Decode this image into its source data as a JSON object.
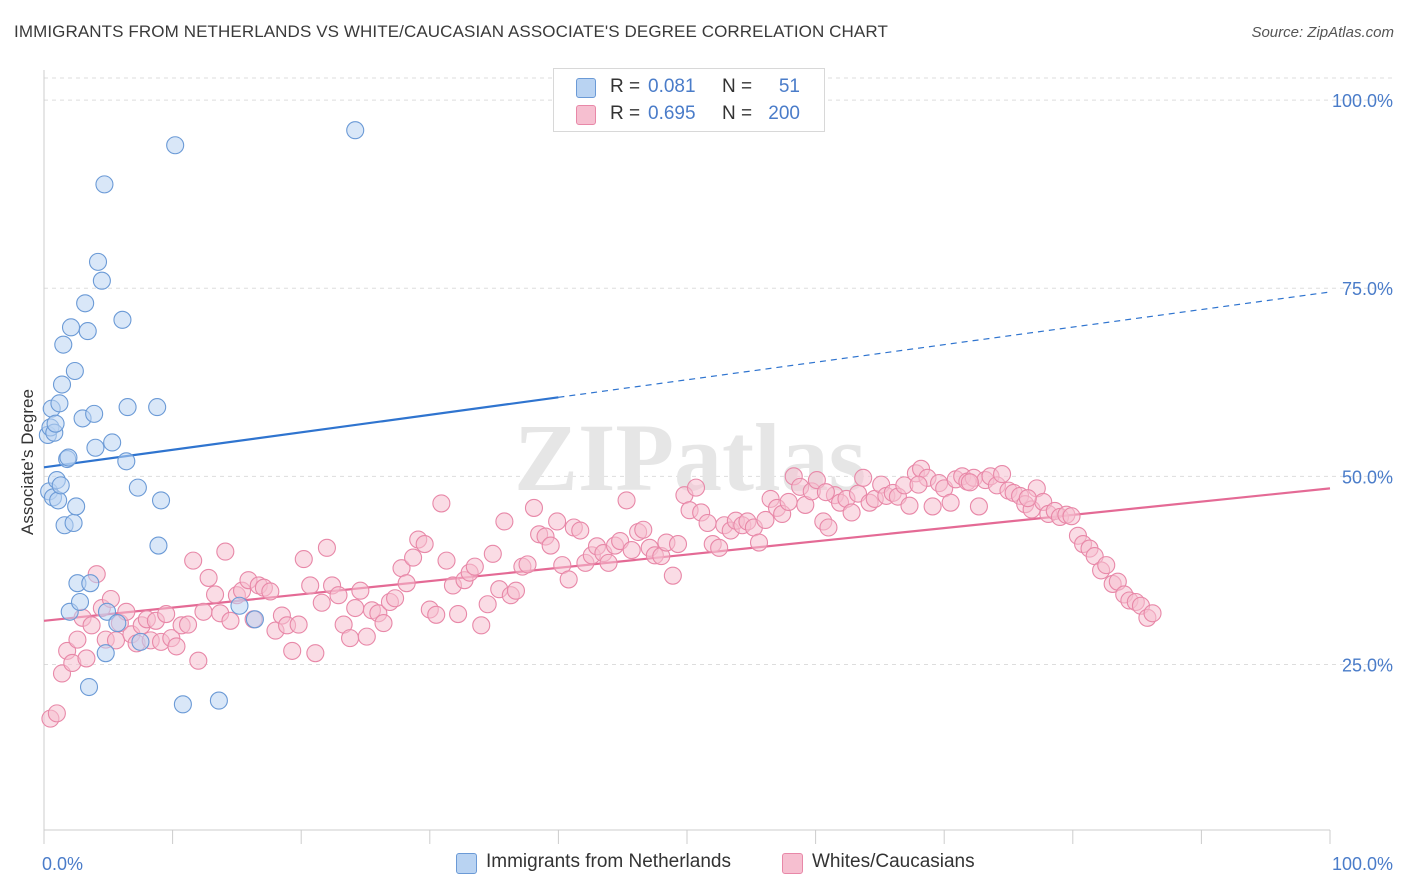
{
  "title": "IMMIGRANTS FROM NETHERLANDS VS WHITE/CAUCASIAN ASSOCIATE'S DEGREE CORRELATION CHART",
  "source": "Source: ZipAtlas.com",
  "watermark": "ZIPatlas",
  "legend": {
    "rows": [
      {
        "r_label": "R =",
        "r_value": "0.081",
        "n_label": "N =",
        "n_value": "51"
      },
      {
        "r_label": "R =",
        "r_value": "0.695",
        "n_label": "N =",
        "n_value": "200"
      }
    ]
  },
  "bottom_legend": [
    "Immigrants from Netherlands",
    "Whites/Caucasians"
  ],
  "colors": {
    "blue_fill": "#b9d3f2",
    "blue_stroke": "#6b9ad6",
    "blue_line": "#2f74cf",
    "pink_fill": "#f6bfd0",
    "pink_stroke": "#e888a8",
    "pink_line": "#e46a95",
    "tick_text": "#4a7cc9",
    "grid": "#dddddd"
  },
  "chart_data": {
    "type": "scatter",
    "title": "IMMIGRANTS FROM NETHERLANDS VS WHITE/CAUCASIAN ASSOCIATE'S DEGREE CORRELATION CHART",
    "xlabel": "",
    "ylabel": "Associate's Degree",
    "xlim": [
      0,
      100
    ],
    "ylim": [
      3,
      104
    ],
    "x_tick_labels": [
      "0.0%",
      "100.0%"
    ],
    "y_ticks": [
      25,
      50,
      75,
      100
    ],
    "y_tick_labels": [
      "25.0%",
      "50.0%",
      "75.0%",
      "100.0%"
    ],
    "grid": true,
    "legend_position": "top-center",
    "series": [
      {
        "name": "Immigrants from Netherlands",
        "color": "#6b9ad6",
        "trend": {
          "x0": 0,
          "y0": 51.2,
          "x1": 40,
          "y1": 60.5,
          "x_dashed_end": 100,
          "y_dashed_end": 74.5
        },
        "points": [
          [
            0.3,
            55.5
          ],
          [
            0.5,
            56.5
          ],
          [
            0.6,
            59
          ],
          [
            0.8,
            55.8
          ],
          [
            0.9,
            57
          ],
          [
            0.4,
            48
          ],
          [
            0.7,
            47.2
          ],
          [
            1.0,
            49.5
          ],
          [
            1.1,
            46.8
          ],
          [
            1.2,
            59.7
          ],
          [
            1.3,
            48.8
          ],
          [
            1.4,
            62.2
          ],
          [
            1.5,
            67.5
          ],
          [
            1.6,
            43.5
          ],
          [
            1.8,
            52.3
          ],
          [
            1.9,
            52.5
          ],
          [
            2.0,
            32
          ],
          [
            2.1,
            69.8
          ],
          [
            2.3,
            43.8
          ],
          [
            2.4,
            64
          ],
          [
            2.5,
            46
          ],
          [
            2.6,
            35.8
          ],
          [
            2.8,
            33.3
          ],
          [
            3.0,
            57.7
          ],
          [
            3.2,
            73
          ],
          [
            3.4,
            69.3
          ],
          [
            3.5,
            22
          ],
          [
            3.6,
            35.8
          ],
          [
            3.9,
            58.3
          ],
          [
            4.0,
            53.8
          ],
          [
            4.2,
            78.5
          ],
          [
            4.5,
            76
          ],
          [
            4.7,
            88.8
          ],
          [
            4.8,
            26.5
          ],
          [
            4.9,
            32
          ],
          [
            5.3,
            54.5
          ],
          [
            5.7,
            30.5
          ],
          [
            6.1,
            70.8
          ],
          [
            6.4,
            52
          ],
          [
            6.5,
            59.2
          ],
          [
            7.3,
            48.5
          ],
          [
            7.5,
            28
          ],
          [
            8.8,
            59.2
          ],
          [
            8.9,
            40.8
          ],
          [
            9.1,
            46.8
          ],
          [
            10.2,
            94
          ],
          [
            10.8,
            19.7
          ],
          [
            13.6,
            20.2
          ],
          [
            15.2,
            32.8
          ],
          [
            16.4,
            31
          ],
          [
            24.2,
            96
          ]
        ]
      },
      {
        "name": "Whites/Caucasians",
        "color": "#e888a8",
        "trend": {
          "x0": 0,
          "y0": 30.8,
          "x1": 100,
          "y1": 48.4
        },
        "points": [
          [
            0.5,
            17.8
          ],
          [
            1.0,
            18.5
          ],
          [
            1.4,
            23.8
          ],
          [
            1.8,
            26.8
          ],
          [
            2.2,
            25.2
          ],
          [
            2.6,
            28.3
          ],
          [
            3.0,
            31.2
          ],
          [
            3.3,
            25.8
          ],
          [
            3.7,
            30.2
          ],
          [
            4.1,
            37
          ],
          [
            4.5,
            32.5
          ],
          [
            4.8,
            28.3
          ],
          [
            5.2,
            33.7
          ],
          [
            5.6,
            28.2
          ],
          [
            5.9,
            30.5
          ],
          [
            6.4,
            32
          ],
          [
            6.8,
            29
          ],
          [
            7.2,
            27.8
          ],
          [
            7.6,
            30.2
          ],
          [
            8.0,
            31
          ],
          [
            8.3,
            28.2
          ],
          [
            8.7,
            30.8
          ],
          [
            9.1,
            28
          ],
          [
            9.5,
            31.7
          ],
          [
            9.9,
            28.5
          ],
          [
            10.3,
            27.4
          ],
          [
            10.7,
            30.2
          ],
          [
            11.2,
            30.3
          ],
          [
            11.6,
            38.8
          ],
          [
            12.0,
            25.5
          ],
          [
            12.4,
            32
          ],
          [
            12.8,
            36.5
          ],
          [
            13.3,
            34.3
          ],
          [
            13.7,
            31.8
          ],
          [
            14.1,
            40
          ],
          [
            14.5,
            30.8
          ],
          [
            15.0,
            34.2
          ],
          [
            15.4,
            34.8
          ],
          [
            15.9,
            36.2
          ],
          [
            16.3,
            31
          ],
          [
            16.7,
            35.5
          ],
          [
            17.1,
            35.2
          ],
          [
            17.6,
            34.7
          ],
          [
            18.0,
            29.5
          ],
          [
            18.5,
            31.5
          ],
          [
            18.9,
            30.2
          ],
          [
            19.3,
            26.8
          ],
          [
            19.8,
            30.3
          ],
          [
            20.2,
            39
          ],
          [
            20.7,
            35.5
          ],
          [
            21.1,
            26.5
          ],
          [
            21.6,
            33.2
          ],
          [
            22.0,
            40.5
          ],
          [
            22.4,
            35.5
          ],
          [
            22.9,
            34.2
          ],
          [
            23.3,
            30.3
          ],
          [
            23.8,
            28.5
          ],
          [
            24.2,
            32.5
          ],
          [
            24.6,
            34.8
          ],
          [
            25.1,
            28.7
          ],
          [
            25.5,
            32.2
          ],
          [
            26.0,
            31.8
          ],
          [
            26.4,
            30.5
          ],
          [
            26.9,
            33.3
          ],
          [
            27.3,
            33.8
          ],
          [
            27.8,
            37.8
          ],
          [
            28.2,
            35.8
          ],
          [
            28.7,
            39.2
          ],
          [
            29.1,
            41.6
          ],
          [
            29.6,
            41
          ],
          [
            30.0,
            32.3
          ],
          [
            30.5,
            31.6
          ],
          [
            30.9,
            46.4
          ],
          [
            31.3,
            38.8
          ],
          [
            31.8,
            35.5
          ],
          [
            32.2,
            31.7
          ],
          [
            32.7,
            36.2
          ],
          [
            33.1,
            37.2
          ],
          [
            33.5,
            38
          ],
          [
            34.0,
            30.2
          ],
          [
            34.5,
            33
          ],
          [
            34.9,
            39.7
          ],
          [
            35.4,
            35
          ],
          [
            35.8,
            44
          ],
          [
            36.3,
            34.2
          ],
          [
            36.7,
            34.8
          ],
          [
            37.2,
            38
          ],
          [
            37.6,
            38.3
          ],
          [
            38.1,
            45.8
          ],
          [
            38.5,
            42.3
          ],
          [
            39.0,
            42
          ],
          [
            39.4,
            40.8
          ],
          [
            39.9,
            44
          ],
          [
            40.3,
            38.2
          ],
          [
            40.8,
            36.3
          ],
          [
            41.2,
            43.2
          ],
          [
            41.7,
            42.8
          ],
          [
            42.1,
            38.5
          ],
          [
            42.6,
            39.5
          ],
          [
            43.0,
            40.7
          ],
          [
            43.5,
            39.8
          ],
          [
            43.9,
            38.5
          ],
          [
            44.4,
            40.8
          ],
          [
            44.8,
            41.4
          ],
          [
            45.3,
            46.8
          ],
          [
            45.7,
            40.2
          ],
          [
            46.2,
            42.6
          ],
          [
            46.6,
            42.9
          ],
          [
            47.1,
            40.5
          ],
          [
            47.5,
            39.5
          ],
          [
            48.0,
            39.4
          ],
          [
            48.4,
            41.2
          ],
          [
            48.9,
            36.8
          ],
          [
            49.3,
            41
          ],
          [
            49.8,
            47.5
          ],
          [
            50.2,
            45.5
          ],
          [
            50.7,
            48.5
          ],
          [
            51.1,
            45.2
          ],
          [
            51.6,
            43.8
          ],
          [
            52.0,
            41
          ],
          [
            52.5,
            40.5
          ],
          [
            52.9,
            43.5
          ],
          [
            53.4,
            42.8
          ],
          [
            53.8,
            44.1
          ],
          [
            54.3,
            43.5
          ],
          [
            54.7,
            44
          ],
          [
            55.2,
            43.2
          ],
          [
            55.6,
            41.2
          ],
          [
            56.1,
            44.2
          ],
          [
            56.5,
            47
          ],
          [
            57.0,
            45.8
          ],
          [
            57.4,
            45
          ],
          [
            57.9,
            46.6
          ],
          [
            58.3,
            50
          ],
          [
            58.8,
            48.6
          ],
          [
            59.2,
            46.2
          ],
          [
            59.7,
            48
          ],
          [
            60.1,
            49.5
          ],
          [
            60.6,
            44
          ],
          [
            61.0,
            43.2
          ],
          [
            61.5,
            47.5
          ],
          [
            61.9,
            46.5
          ],
          [
            62.4,
            47
          ],
          [
            62.8,
            45.2
          ],
          [
            63.3,
            47.7
          ],
          [
            63.7,
            49.8
          ],
          [
            64.2,
            46.5
          ],
          [
            64.6,
            47
          ],
          [
            65.1,
            48.9
          ],
          [
            65.5,
            47.4
          ],
          [
            66.0,
            47.8
          ],
          [
            66.4,
            47.3
          ],
          [
            66.9,
            48.8
          ],
          [
            67.3,
            46.1
          ],
          [
            67.8,
            50.4
          ],
          [
            68.2,
            51
          ],
          [
            68.7,
            49.8
          ],
          [
            69.1,
            46
          ],
          [
            69.6,
            49.1
          ],
          [
            70.0,
            48.4
          ],
          [
            70.5,
            46.5
          ],
          [
            70.9,
            49.6
          ],
          [
            71.4,
            50
          ],
          [
            71.8,
            49.3
          ],
          [
            72.3,
            49.8
          ],
          [
            72.7,
            46
          ],
          [
            73.2,
            49.5
          ],
          [
            73.6,
            50
          ],
          [
            74.1,
            48.8
          ],
          [
            74.5,
            50.3
          ],
          [
            75.0,
            48.1
          ],
          [
            75.4,
            47.8
          ],
          [
            75.9,
            47.4
          ],
          [
            76.3,
            46.3
          ],
          [
            76.8,
            45.6
          ],
          [
            77.2,
            48.4
          ],
          [
            77.7,
            46.6
          ],
          [
            78.1,
            45
          ],
          [
            78.6,
            45.4
          ],
          [
            79.0,
            44.6
          ],
          [
            79.5,
            44.9
          ],
          [
            79.9,
            44.7
          ],
          [
            80.4,
            42.1
          ],
          [
            80.8,
            41
          ],
          [
            81.3,
            40.4
          ],
          [
            81.7,
            39.4
          ],
          [
            82.2,
            37.5
          ],
          [
            82.6,
            38.2
          ],
          [
            83.1,
            35.7
          ],
          [
            83.5,
            36
          ],
          [
            84.0,
            34.3
          ],
          [
            84.4,
            33.5
          ],
          [
            84.9,
            33.3
          ],
          [
            85.3,
            32.8
          ],
          [
            85.8,
            31.2
          ],
          [
            86.2,
            31.8
          ],
          [
            72.0,
            49.2
          ],
          [
            76.5,
            47.1
          ],
          [
            68.0,
            48.9
          ],
          [
            60.8,
            47.9
          ]
        ]
      }
    ]
  }
}
